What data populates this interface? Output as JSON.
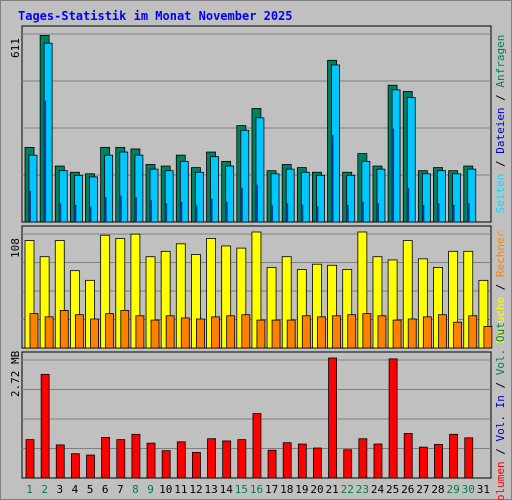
{
  "title": "Tages-Statistik im Monat November 2025",
  "colors": {
    "background": "#c0c0c0",
    "frame": "#808080",
    "title": "#0000ff",
    "anfragen": "#008060",
    "dateien": "#00c8ff",
    "seiten": "#00e0ff",
    "besuche": "#ffff00",
    "rechner": "#ff8000",
    "volumen": "#ff0000",
    "label_blue": "#0000c0",
    "weekend_day": "#008040",
    "weekday": "#000000"
  },
  "chart_data": [
    {
      "type": "bar",
      "panel": "top",
      "ymax_label": "611",
      "ymax": 611,
      "x": [
        "1",
        "2",
        "3",
        "4",
        "5",
        "6",
        "7",
        "8",
        "9",
        "10",
        "11",
        "12",
        "13",
        "14",
        "15",
        "16",
        "17",
        "18",
        "19",
        "20",
        "21",
        "22",
        "23",
        "24",
        "25",
        "26",
        "27",
        "28",
        "29",
        "30",
        "31"
      ],
      "series": [
        {
          "name": "Anfragen",
          "values": [
            240,
            600,
            180,
            160,
            155,
            240,
            240,
            235,
            185,
            180,
            215,
            175,
            225,
            195,
            310,
            365,
            165,
            185,
            175,
            160,
            520,
            160,
            220,
            180,
            440,
            420,
            165,
            175,
            165,
            180,
            0
          ]
        },
        {
          "name": "Dateien",
          "values": [
            215,
            575,
            165,
            150,
            145,
            215,
            225,
            215,
            170,
            165,
            195,
            160,
            210,
            180,
            295,
            335,
            155,
            170,
            160,
            150,
            505,
            150,
            195,
            170,
            425,
            400,
            155,
            165,
            155,
            170,
            0
          ]
        },
        {
          "name": "Seiten",
          "values": [
            100,
            390,
            60,
            55,
            50,
            80,
            85,
            80,
            70,
            60,
            65,
            55,
            75,
            65,
            110,
            120,
            55,
            60,
            55,
            50,
            280,
            55,
            65,
            60,
            300,
            110,
            55,
            60,
            55,
            60,
            0
          ]
        }
      ],
      "legend": [
        "Seiten",
        "/",
        "Dateien",
        "/",
        "Anfragen"
      ]
    },
    {
      "type": "bar",
      "panel": "middle",
      "ymax_label": "108",
      "ymax": 108,
      "x": [
        "1",
        "2",
        "3",
        "4",
        "5",
        "6",
        "7",
        "8",
        "9",
        "10",
        "11",
        "12",
        "13",
        "14",
        "15",
        "16",
        "17",
        "18",
        "19",
        "20",
        "21",
        "22",
        "23",
        "24",
        "25",
        "26",
        "27",
        "28",
        "29",
        "30",
        "31"
      ],
      "series": [
        {
          "name": "Besuche",
          "values": [
            100,
            85,
            100,
            72,
            63,
            105,
            102,
            106,
            85,
            90,
            97,
            87,
            102,
            95,
            93,
            108,
            75,
            85,
            73,
            78,
            77,
            73,
            108,
            85,
            82,
            100,
            83,
            75,
            90,
            90,
            63
          ]
        },
        {
          "name": "Rechner",
          "values": [
            32,
            29,
            35,
            31,
            27,
            32,
            35,
            30,
            26,
            30,
            28,
            27,
            29,
            30,
            31,
            26,
            26,
            26,
            30,
            29,
            30,
            31,
            32,
            30,
            26,
            27,
            29,
            31,
            24,
            30,
            20
          ]
        }
      ],
      "legend": [
        "Besuche",
        "/",
        "Rechner"
      ]
    },
    {
      "type": "bar",
      "panel": "bottom",
      "ymax_label": "2.72 MB",
      "ymax": 2.72,
      "unit": "MB",
      "x": [
        "1",
        "2",
        "3",
        "4",
        "5",
        "6",
        "7",
        "8",
        "9",
        "10",
        "11",
        "12",
        "13",
        "14",
        "15",
        "16",
        "17",
        "18",
        "19",
        "20",
        "21",
        "22",
        "23",
        "24",
        "25",
        "26",
        "27",
        "28",
        "29",
        "30",
        "31"
      ],
      "series": [
        {
          "name": "Volumen",
          "values": [
            0.87,
            2.35,
            0.75,
            0.55,
            0.52,
            0.92,
            0.87,
            0.99,
            0.79,
            0.62,
            0.82,
            0.58,
            0.89,
            0.84,
            0.87,
            1.46,
            0.63,
            0.8,
            0.77,
            0.68,
            2.72,
            0.64,
            0.89,
            0.77,
            2.7,
            1.01,
            0.7,
            0.76,
            0.99,
            0.91,
            0
          ]
        }
      ],
      "legend": [
        "Volumen",
        "/",
        "Vol. In",
        "/",
        "Vol. Out"
      ]
    }
  ],
  "x_labels": [
    "1",
    "2",
    "3",
    "4",
    "5",
    "6",
    "7",
    "8",
    "9",
    "10",
    "11",
    "12",
    "13",
    "14",
    "15",
    "16",
    "17",
    "18",
    "19",
    "20",
    "21",
    "22",
    "23",
    "24",
    "25",
    "26",
    "27",
    "28",
    "29",
    "30",
    "31"
  ],
  "weekend_days": [
    "1",
    "2",
    "8",
    "9",
    "15",
    "16",
    "22",
    "23",
    "29",
    "30"
  ]
}
